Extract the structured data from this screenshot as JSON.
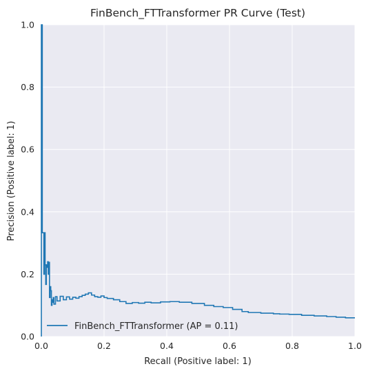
{
  "chart_data": {
    "type": "line",
    "title": "FinBench_FTTransformer PR Curve (Test)",
    "xlabel": "Recall (Positive label: 1)",
    "ylabel": "Precision (Positive label: 1)",
    "xlim": [
      0,
      1
    ],
    "ylim": [
      0,
      1
    ],
    "x_ticks": [
      "0.0",
      "0.2",
      "0.4",
      "0.6",
      "0.8",
      "1.0"
    ],
    "y_ticks": [
      "0.0",
      "0.2",
      "0.4",
      "0.6",
      "0.8",
      "1.0"
    ],
    "grid": true,
    "legend_position": "lower-left",
    "colors": {
      "background": "#eaeaf2",
      "grid": "#ffffff",
      "series": "#1f77b4"
    },
    "series": [
      {
        "name": "FinBench_FTTransformer (AP = 0.11)",
        "drawstyle": "steps-post",
        "x": [
          0.0,
          0.0,
          0.003,
          0.003,
          0.006,
          0.008,
          0.01,
          0.012,
          0.014,
          0.016,
          0.018,
          0.02,
          0.022,
          0.024,
          0.026,
          0.028,
          0.03,
          0.032,
          0.034,
          0.036,
          0.038,
          0.04,
          0.045,
          0.05,
          0.06,
          0.07,
          0.08,
          0.09,
          0.1,
          0.11,
          0.12,
          0.13,
          0.14,
          0.15,
          0.16,
          0.17,
          0.18,
          0.19,
          0.2,
          0.21,
          0.23,
          0.25,
          0.27,
          0.29,
          0.31,
          0.33,
          0.35,
          0.38,
          0.41,
          0.44,
          0.48,
          0.52,
          0.55,
          0.58,
          0.61,
          0.64,
          0.66,
          0.7,
          0.74,
          0.76,
          0.79,
          0.83,
          0.87,
          0.91,
          0.94,
          0.97,
          1.0
        ],
        "y": [
          0.0,
          1.0,
          1.0,
          0.333,
          0.333,
          0.2,
          0.333,
          0.23,
          0.167,
          0.23,
          0.222,
          0.24,
          0.2,
          0.238,
          0.125,
          0.16,
          0.147,
          0.1,
          0.118,
          0.11,
          0.125,
          0.104,
          0.128,
          0.114,
          0.129,
          0.118,
          0.127,
          0.12,
          0.126,
          0.123,
          0.128,
          0.132,
          0.136,
          0.14,
          0.133,
          0.128,
          0.126,
          0.13,
          0.125,
          0.122,
          0.118,
          0.112,
          0.106,
          0.109,
          0.107,
          0.11,
          0.108,
          0.111,
          0.112,
          0.11,
          0.106,
          0.1,
          0.096,
          0.093,
          0.087,
          0.08,
          0.077,
          0.075,
          0.073,
          0.072,
          0.071,
          0.068,
          0.066,
          0.064,
          0.062,
          0.06,
          0.06
        ]
      }
    ]
  }
}
